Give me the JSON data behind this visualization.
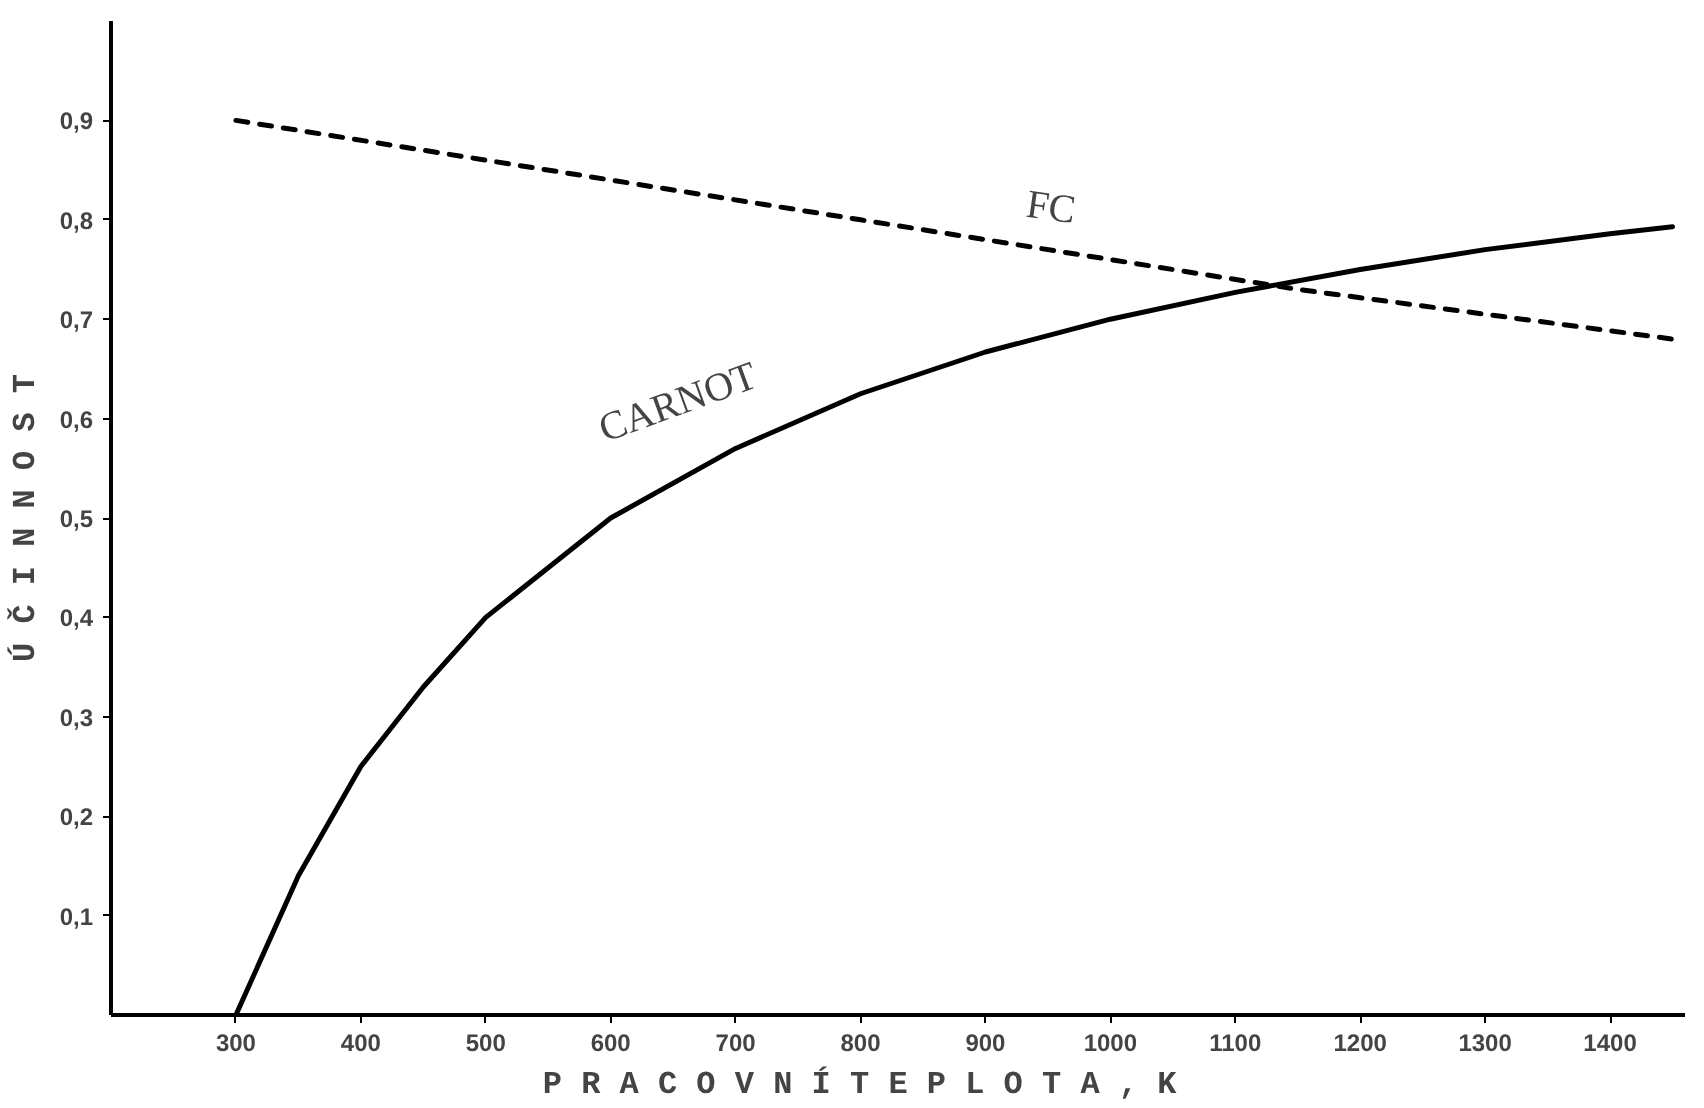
{
  "chart_data": {
    "type": "line",
    "xlabel": "P R A C O V N Í   T E P L O T A ,   K",
    "ylabel": "Ú Č I N N O S T",
    "xlim": [
      200,
      1460
    ],
    "ylim": [
      0,
      1.0
    ],
    "xticks": [
      300,
      400,
      500,
      600,
      700,
      800,
      900,
      1000,
      1100,
      1200,
      1300,
      1400
    ],
    "yticks": [
      {
        "value": 0.1,
        "label": "0,1"
      },
      {
        "value": 0.2,
        "label": "0,2"
      },
      {
        "value": 0.3,
        "label": "0,3"
      },
      {
        "value": 0.4,
        "label": "0,4"
      },
      {
        "value": 0.5,
        "label": "0,5"
      },
      {
        "value": 0.6,
        "label": "0,6"
      },
      {
        "value": 0.7,
        "label": "0,7"
      },
      {
        "value": 0.8,
        "label": "0,8"
      },
      {
        "value": 0.9,
        "label": "0,9"
      }
    ],
    "grid": false,
    "legend": false,
    "series": [
      {
        "name": "FC",
        "color": "#000000",
        "line_style": "dashed",
        "x": [
          300,
          800,
          1150,
          1450
        ],
        "values": [
          0.9,
          0.8,
          0.73,
          0.68
        ]
      },
      {
        "name": "CARNOT",
        "color": "#000000",
        "line_style": "solid",
        "x": [
          300,
          350,
          400,
          450,
          500,
          600,
          700,
          800,
          900,
          1000,
          1100,
          1200,
          1300,
          1400,
          1450
        ],
        "values": [
          0,
          0.14,
          0.25,
          0.33,
          0.4,
          0.5,
          0.57,
          0.625,
          0.667,
          0.7,
          0.727,
          0.75,
          0.77,
          0.786,
          0.793
        ]
      }
    ]
  }
}
